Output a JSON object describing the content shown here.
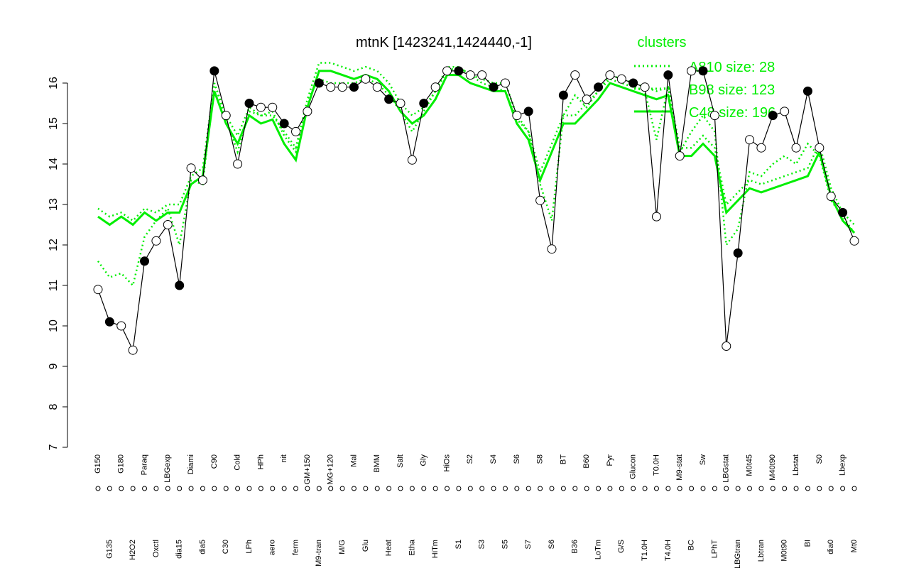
{
  "chart_data": {
    "type": "line",
    "title": "mtnK [1423241,1424440,-1]",
    "legend_title": "clusters",
    "categories": [
      "G150",
      "G135",
      "G180",
      "H2O2",
      "Paraq",
      "Oxctl",
      "LBGexp",
      "dia15",
      "Diami",
      "dia5",
      "C90",
      "C30",
      "Cold",
      "LPh",
      "HPh",
      "aero",
      "nit",
      "ferm",
      "GM+150",
      "M9-tran",
      "MG+120",
      "M/G",
      "Mal",
      "Glu",
      "BMM",
      "Heat",
      "Salt",
      "Etha",
      "Gly",
      "HiTm",
      "HiOs",
      "S1",
      "S2",
      "S3",
      "S4",
      "S5",
      "S6",
      "S7",
      "S8",
      "S6",
      "BT",
      "B36",
      "B60",
      "LoTm",
      "Pyr",
      "G/S",
      "Glucon",
      "T1.0H",
      "T0.0H",
      "T4.0H",
      "M9-stat",
      "BC",
      "Sw",
      "LPhT",
      "LBGstat",
      "LBGtran",
      "M0t45",
      "Lbtran",
      "M40t90",
      "M0t90",
      "Lbstat",
      "BI",
      "S0",
      "dia0",
      "Lbexp",
      "Mt0"
    ],
    "values": [
      10.9,
      10.1,
      10.0,
      9.4,
      11.6,
      12.1,
      12.5,
      11.0,
      13.9,
      13.6,
      16.3,
      15.2,
      14.0,
      15.5,
      15.4,
      15.4,
      15.0,
      14.8,
      15.3,
      16.0,
      15.9,
      15.9,
      15.9,
      16.1,
      15.9,
      15.6,
      15.5,
      14.1,
      15.5,
      15.9,
      16.3,
      16.3,
      16.2,
      16.2,
      15.9,
      16.0,
      15.2,
      15.3,
      13.1,
      11.9,
      15.7,
      16.2,
      15.6,
      15.9,
      16.2,
      16.1,
      16.0,
      15.9,
      12.7,
      16.2,
      14.2,
      16.3,
      16.3,
      15.2,
      9.5,
      11.8,
      14.6,
      14.4,
      15.2,
      15.3,
      14.4,
      15.8,
      14.4,
      13.2,
      12.8,
      12.1
    ],
    "color": "#000000",
    "series": [
      {
        "name": "A810 size: 28",
        "color": "#00ee00",
        "style": "dotted",
        "values": [
          11.6,
          11.2,
          11.3,
          11.0,
          12.2,
          12.6,
          12.9,
          12.0,
          13.6,
          13.5,
          16.0,
          15.1,
          14.3,
          15.3,
          15.2,
          15.2,
          14.8,
          14.4,
          15.6,
          16.1,
          16.0,
          16.0,
          16.0,
          16.1,
          16.0,
          15.7,
          15.3,
          14.8,
          15.3,
          15.8,
          16.3,
          16.4,
          16.2,
          16.0,
          15.9,
          15.8,
          15.1,
          14.8,
          13.5,
          12.6,
          15.2,
          15.7,
          15.4,
          15.8,
          16.1,
          16.0,
          15.9,
          15.8,
          14.6,
          15.9,
          14.3,
          14.8,
          15.2,
          14.8,
          12.0,
          12.4,
          13.8,
          13.7,
          14.0,
          14.2,
          14.0,
          14.5,
          14.2,
          13.1,
          12.7,
          12.3
        ]
      },
      {
        "name": "B98 size: 123",
        "color": "#00ee00",
        "style": "dotted",
        "values": [
          12.9,
          12.7,
          12.8,
          12.6,
          12.9,
          12.8,
          13.0,
          13.0,
          13.7,
          13.9,
          16.0,
          15.2,
          14.7,
          15.4,
          15.2,
          15.3,
          14.7,
          14.3,
          15.6,
          16.5,
          16.5,
          16.4,
          16.3,
          16.4,
          16.3,
          16.0,
          15.5,
          15.2,
          15.4,
          15.8,
          16.4,
          16.4,
          16.2,
          16.1,
          16.0,
          16.0,
          15.2,
          14.8,
          13.8,
          14.5,
          15.2,
          15.2,
          15.5,
          15.8,
          16.2,
          16.1,
          16.0,
          15.9,
          15.8,
          15.9,
          14.4,
          14.4,
          14.7,
          14.4,
          13.0,
          13.3,
          13.6,
          13.5,
          13.6,
          13.7,
          13.8,
          13.9,
          14.5,
          13.4,
          12.8,
          12.5
        ]
      },
      {
        "name": "C48 size: 196",
        "color": "#00ee00",
        "style": "solid",
        "values": [
          12.7,
          12.5,
          12.7,
          12.5,
          12.8,
          12.6,
          12.8,
          12.8,
          13.5,
          13.7,
          15.8,
          15.0,
          14.5,
          15.2,
          15.0,
          15.1,
          14.5,
          14.1,
          15.4,
          16.3,
          16.3,
          16.2,
          16.1,
          16.2,
          16.1,
          15.8,
          15.3,
          15.0,
          15.2,
          15.6,
          16.2,
          16.2,
          16.0,
          15.9,
          15.8,
          15.8,
          15.0,
          14.6,
          13.6,
          14.3,
          15.0,
          15.0,
          15.3,
          15.6,
          16.0,
          15.9,
          15.8,
          15.7,
          15.6,
          15.7,
          14.2,
          14.2,
          14.5,
          14.2,
          12.8,
          13.1,
          13.4,
          13.3,
          13.4,
          13.5,
          13.6,
          13.7,
          14.3,
          13.2,
          12.6,
          12.3
        ]
      }
    ],
    "ylim": [
      7,
      16
    ],
    "yticks": [
      7,
      8,
      9,
      10,
      11,
      12,
      13,
      14,
      15,
      16
    ]
  }
}
